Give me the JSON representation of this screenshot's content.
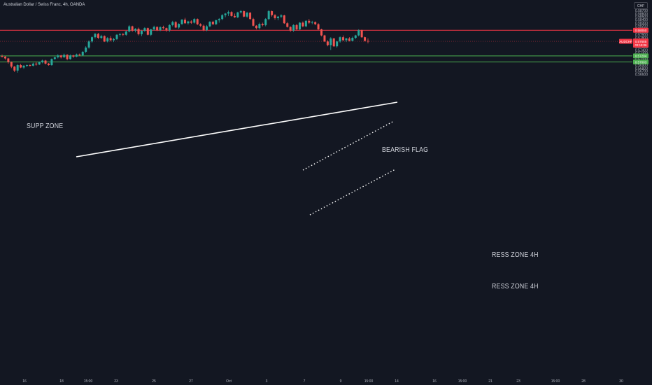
{
  "header": {
    "title": "Australian Dollar / Swiss Franc, 4h, OANDA",
    "currency_button": "CHF"
  },
  "colors": {
    "background": "#131722",
    "bull": "#26a69a",
    "bear": "#ef5350",
    "support_line": "#f23645",
    "resistance_line": "#4caf50",
    "trendline": "#ffffff",
    "price_line": "#f23645"
  },
  "chart_data": {
    "type": "candlestick",
    "symbol": "AUDCHF",
    "ylim": [
      0.5657,
      0.58748
    ],
    "y_ticks": [
      "0.58700",
      "0.58600",
      "0.58500",
      "0.58400",
      "0.58300",
      "0.58200",
      "0.58100",
      "0.58000",
      "0.57900",
      "0.57800",
      "0.57700",
      "0.57600",
      "0.57500",
      "0.57400",
      "0.57300",
      "0.57200",
      "0.57100",
      "0.57000",
      "0.56900",
      "0.56800",
      "0.56700",
      "0.56600"
    ],
    "x_ticks": [
      "16",
      "18",
      "15:00",
      "23",
      "25",
      "27",
      "Oct",
      "3",
      "7",
      "9",
      "15:00",
      "14",
      "16",
      "15:00",
      "21",
      "23",
      "15:00",
      "28",
      "30"
    ],
    "candles": [
      [
        0.572,
        0.5725,
        0.5715,
        0.5718
      ],
      [
        0.5718,
        0.572,
        0.5708,
        0.5712
      ],
      [
        0.5712,
        0.5714,
        0.5695,
        0.57
      ],
      [
        0.57,
        0.5702,
        0.568,
        0.5685
      ],
      [
        0.5685,
        0.5687,
        0.5667,
        0.5672
      ],
      [
        0.5672,
        0.5693,
        0.5665,
        0.569
      ],
      [
        0.569,
        0.5694,
        0.568,
        0.5682
      ],
      [
        0.5682,
        0.569,
        0.5678,
        0.5688
      ],
      [
        0.5688,
        0.5692,
        0.5683,
        0.569
      ],
      [
        0.569,
        0.5693,
        0.5685,
        0.5688
      ],
      [
        0.5688,
        0.5698,
        0.5686,
        0.5695
      ],
      [
        0.5695,
        0.57,
        0.5688,
        0.5692
      ],
      [
        0.5692,
        0.5702,
        0.569,
        0.57
      ],
      [
        0.57,
        0.5708,
        0.5696,
        0.5705
      ],
      [
        0.5705,
        0.5707,
        0.5692,
        0.5695
      ],
      [
        0.5695,
        0.5697,
        0.5688,
        0.569
      ],
      [
        0.569,
        0.5712,
        0.5688,
        0.571
      ],
      [
        0.571,
        0.5718,
        0.5708,
        0.5716
      ],
      [
        0.5716,
        0.5726,
        0.5712,
        0.5722
      ],
      [
        0.5722,
        0.5724,
        0.5712,
        0.5716
      ],
      [
        0.5716,
        0.5728,
        0.5714,
        0.5724
      ],
      [
        0.5724,
        0.5726,
        0.5706,
        0.571
      ],
      [
        0.571,
        0.5725,
        0.5708,
        0.5722
      ],
      [
        0.5722,
        0.5724,
        0.5714,
        0.5718
      ],
      [
        0.5718,
        0.5728,
        0.5716,
        0.5725
      ],
      [
        0.5725,
        0.5728,
        0.572,
        0.5722
      ],
      [
        0.5722,
        0.5736,
        0.572,
        0.5734
      ],
      [
        0.5734,
        0.5752,
        0.573,
        0.5748
      ],
      [
        0.5748,
        0.5772,
        0.5744,
        0.5768
      ],
      [
        0.5768,
        0.5785,
        0.5764,
        0.5782
      ],
      [
        0.5782,
        0.5796,
        0.5778,
        0.5793
      ],
      [
        0.5793,
        0.5796,
        0.5776,
        0.578
      ],
      [
        0.578,
        0.579,
        0.5776,
        0.5786
      ],
      [
        0.5786,
        0.5788,
        0.5766,
        0.5768
      ],
      [
        0.5768,
        0.5782,
        0.5765,
        0.5779
      ],
      [
        0.5779,
        0.5786,
        0.5768,
        0.5772
      ],
      [
        0.5772,
        0.578,
        0.5766,
        0.5776
      ],
      [
        0.5776,
        0.5792,
        0.5773,
        0.579
      ],
      [
        0.579,
        0.5796,
        0.5784,
        0.5792
      ],
      [
        0.5792,
        0.5796,
        0.5786,
        0.579
      ],
      [
        0.579,
        0.5804,
        0.5787,
        0.5801
      ],
      [
        0.5801,
        0.5822,
        0.5798,
        0.5818
      ],
      [
        0.5818,
        0.582,
        0.58,
        0.5804
      ],
      [
        0.5804,
        0.5812,
        0.5798,
        0.581
      ],
      [
        0.581,
        0.5814,
        0.5788,
        0.5792
      ],
      [
        0.5792,
        0.5806,
        0.5786,
        0.5803
      ],
      [
        0.5803,
        0.5815,
        0.58,
        0.5812
      ],
      [
        0.5812,
        0.5814,
        0.5788,
        0.579
      ],
      [
        0.579,
        0.581,
        0.5786,
        0.5808
      ],
      [
        0.5808,
        0.582,
        0.5804,
        0.5816
      ],
      [
        0.5816,
        0.5818,
        0.5802,
        0.5805
      ],
      [
        0.5805,
        0.5818,
        0.5802,
        0.5815
      ],
      [
        0.5815,
        0.582,
        0.5808,
        0.5812
      ],
      [
        0.5812,
        0.5814,
        0.58,
        0.5805
      ],
      [
        0.5805,
        0.5825,
        0.58,
        0.5822
      ],
      [
        0.5822,
        0.5836,
        0.5818,
        0.5832
      ],
      [
        0.5832,
        0.5835,
        0.5812,
        0.5814
      ],
      [
        0.5814,
        0.5828,
        0.581,
        0.5826
      ],
      [
        0.5826,
        0.5842,
        0.5822,
        0.584
      ],
      [
        0.584,
        0.5846,
        0.5826,
        0.5828
      ],
      [
        0.5828,
        0.5836,
        0.5824,
        0.5834
      ],
      [
        0.5834,
        0.5838,
        0.5826,
        0.583
      ],
      [
        0.583,
        0.5845,
        0.5827,
        0.5842
      ],
      [
        0.5842,
        0.5844,
        0.5822,
        0.5825
      ],
      [
        0.5825,
        0.5828,
        0.5816,
        0.582
      ],
      [
        0.582,
        0.5824,
        0.5802,
        0.5805
      ],
      [
        0.5805,
        0.5822,
        0.5802,
        0.5818
      ],
      [
        0.5818,
        0.5835,
        0.5815,
        0.5833
      ],
      [
        0.5833,
        0.5836,
        0.5822,
        0.5825
      ],
      [
        0.5825,
        0.584,
        0.5822,
        0.5838
      ],
      [
        0.5838,
        0.5845,
        0.583,
        0.5842
      ],
      [
        0.5842,
        0.5858,
        0.5838,
        0.5855
      ],
      [
        0.5855,
        0.5862,
        0.5848,
        0.586
      ],
      [
        0.586,
        0.587,
        0.5852,
        0.5865
      ],
      [
        0.5865,
        0.5868,
        0.585,
        0.5852
      ],
      [
        0.5852,
        0.586,
        0.5846,
        0.5848
      ],
      [
        0.5848,
        0.5866,
        0.5845,
        0.5864
      ],
      [
        0.5864,
        0.5872,
        0.586,
        0.5868
      ],
      [
        0.5868,
        0.587,
        0.5848,
        0.585
      ],
      [
        0.585,
        0.5866,
        0.5846,
        0.5863
      ],
      [
        0.5863,
        0.5865,
        0.584,
        0.5842
      ],
      [
        0.5842,
        0.5846,
        0.5818,
        0.582
      ],
      [
        0.582,
        0.5822,
        0.5808,
        0.5812
      ],
      [
        0.5812,
        0.583,
        0.5808,
        0.5826
      ],
      [
        0.5826,
        0.583,
        0.5818,
        0.5822
      ],
      [
        0.5822,
        0.5845,
        0.5818,
        0.5842
      ],
      [
        0.5842,
        0.5872,
        0.5838,
        0.5868
      ],
      [
        0.5868,
        0.587,
        0.585,
        0.5855
      ],
      [
        0.5855,
        0.5858,
        0.584,
        0.5845
      ],
      [
        0.5845,
        0.5852,
        0.5838,
        0.585
      ],
      [
        0.585,
        0.5858,
        0.5845,
        0.5854
      ],
      [
        0.5854,
        0.5856,
        0.5826,
        0.5828
      ],
      [
        0.5828,
        0.5832,
        0.5814,
        0.5816
      ],
      [
        0.5816,
        0.5818,
        0.58,
        0.5804
      ],
      [
        0.5804,
        0.5825,
        0.58,
        0.5822
      ],
      [
        0.5822,
        0.5826,
        0.5805,
        0.5808
      ],
      [
        0.5808,
        0.5832,
        0.5805,
        0.583
      ],
      [
        0.583,
        0.5834,
        0.5815,
        0.5818
      ],
      [
        0.5818,
        0.5838,
        0.5815,
        0.5836
      ],
      [
        0.5836,
        0.5842,
        0.5826,
        0.583
      ],
      [
        0.583,
        0.5836,
        0.5825,
        0.5832
      ],
      [
        0.5832,
        0.5834,
        0.5822,
        0.5825
      ],
      [
        0.5825,
        0.5828,
        0.5806,
        0.5808
      ],
      [
        0.5808,
        0.581,
        0.5785,
        0.5788
      ],
      [
        0.5788,
        0.579,
        0.5766,
        0.5768
      ],
      [
        0.5768,
        0.5772,
        0.5752,
        0.5756
      ],
      [
        0.5756,
        0.5782,
        0.574,
        0.5778
      ],
      [
        0.5778,
        0.578,
        0.575,
        0.5752
      ],
      [
        0.5752,
        0.577,
        0.5748,
        0.5768
      ],
      [
        0.5768,
        0.5785,
        0.5764,
        0.5782
      ],
      [
        0.5782,
        0.5788,
        0.577,
        0.5772
      ],
      [
        0.5772,
        0.578,
        0.5766,
        0.5778
      ],
      [
        0.5778,
        0.5782,
        0.5768,
        0.577
      ],
      [
        0.577,
        0.5784,
        0.5768,
        0.578
      ],
      [
        0.578,
        0.579,
        0.5776,
        0.5788
      ],
      [
        0.5788,
        0.5808,
        0.5785,
        0.5805
      ],
      [
        0.5805,
        0.5807,
        0.578,
        0.5782
      ],
      [
        0.5782,
        0.5784,
        0.5768,
        0.577
      ],
      [
        0.577,
        0.5778,
        0.5762,
        0.5768
      ]
    ],
    "current_price": 0.57685,
    "current_price_label": "0.57685",
    "countdown_label": "03:19:06",
    "symbol_label": "AUDCHF",
    "horizontal_levels": [
      {
        "name": "SUPP ZONE",
        "price": 0.5805,
        "label": "0.58050",
        "color": "#f23645"
      },
      {
        "name": "RESS ZONE 4H",
        "price": 0.57204,
        "label": "0.57204",
        "color": "#4caf50"
      },
      {
        "name": "RESS ZONE 4H",
        "price": 0.57003,
        "label": "0.57003",
        "color": "#4caf50"
      }
    ],
    "annotations": [
      "SUPP ZONE",
      "BEARISH FLAG",
      "RESS ZONE 4H",
      "RESS ZONE 4H"
    ]
  }
}
